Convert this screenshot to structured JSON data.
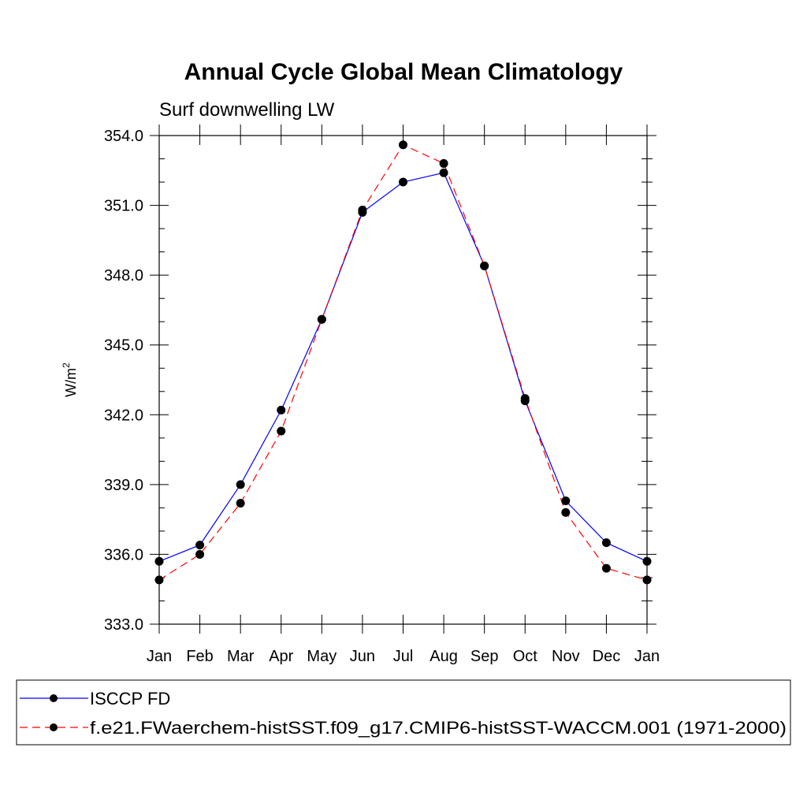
{
  "chart_data": {
    "type": "line",
    "title": "Annual Cycle Global Mean Climatology",
    "subtitle": "Surf downwelling LW",
    "ylabel": "W/m",
    "ylabel_sup": "2",
    "xlabel": "",
    "categories": [
      "Jan",
      "Feb",
      "Mar",
      "Apr",
      "May",
      "Jun",
      "Jul",
      "Aug",
      "Sep",
      "Oct",
      "Nov",
      "Dec",
      "Jan"
    ],
    "ylim": [
      333.0,
      354.0
    ],
    "yticks": [
      "333.0",
      "336.0",
      "339.0",
      "342.0",
      "345.0",
      "348.0",
      "351.0",
      "354.0"
    ],
    "ytick_values": [
      333,
      336,
      339,
      342,
      345,
      348,
      351,
      354
    ],
    "grid": false,
    "legend_position": "bottom",
    "series": [
      {
        "name": "ISCCP FD",
        "color": "#0000ff",
        "dash": "solid",
        "values": [
          335.7,
          336.4,
          339.0,
          342.2,
          346.1,
          350.7,
          352.0,
          352.4,
          348.4,
          342.6,
          338.3,
          336.5,
          335.7
        ]
      },
      {
        "name": "f.e21.FWaerchem-histSST.f09_g17.CMIP6-histSST-WACCM.001 (1971-2000)",
        "color": "#ff0000",
        "dash": "dashed",
        "values": [
          334.9,
          336.0,
          338.2,
          341.3,
          346.1,
          350.8,
          353.6,
          352.8,
          348.4,
          342.7,
          337.8,
          335.4,
          334.9
        ]
      }
    ]
  }
}
